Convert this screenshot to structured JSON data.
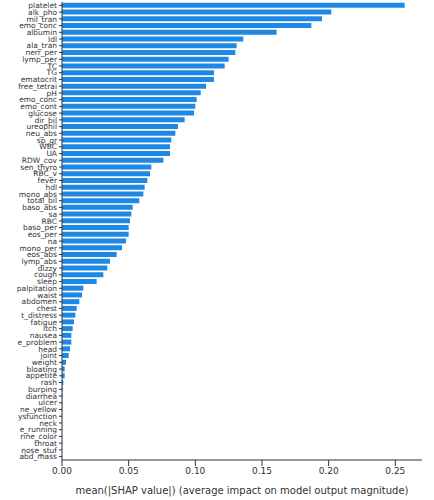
{
  "chart_data": {
    "type": "bar",
    "orientation": "horizontal",
    "xlabel": "mean(|SHAP value|) (average impact on model output magnitude)",
    "color": "#1e88e5",
    "grid": false,
    "xlim": [
      0,
      0.27
    ],
    "xticks": [
      {
        "value": 0,
        "label": "0.00"
      },
      {
        "value": 0.05,
        "label": "0.05"
      },
      {
        "value": 0.1,
        "label": "0.10"
      },
      {
        "value": 0.15,
        "label": "0.15"
      },
      {
        "value": 0.2,
        "label": "0.20"
      },
      {
        "value": 0.25,
        "label": "0.25"
      }
    ],
    "categories": [
      "platelet",
      "alk_pho",
      "mil_tran",
      "emo_conc",
      "albumin",
      "ldl",
      "ala_tran",
      "nerr_per",
      "lymp_per",
      "TC",
      "TG",
      "ematocrit",
      "free_tetrai",
      "pH",
      "emo_conc",
      "emo_cont",
      "glucose",
      "dir_bil",
      "ureophil",
      "neu_abs",
      "sp_gr",
      "WBC",
      "UA",
      "RDW_cov",
      "sen_thyro",
      "RBC_v",
      "fever",
      "hdl",
      "mono_abs",
      "total_bil",
      "baso_abs",
      "sa",
      "RBC",
      "baso_per",
      "eos_per",
      "na",
      "mono_per",
      "eos_abs",
      "lymp_abs",
      "dizzy",
      "cough",
      "sleep",
      "palpitation",
      "waist",
      "abdomen",
      "chest",
      "t_distress",
      "fatigue",
      "itch",
      "nausea",
      "e_problem",
      "head",
      "joint",
      "weight",
      "bloating",
      "appetite",
      "rash",
      "burping",
      "diarrhea",
      "ulcer",
      "ne_yellow",
      "ysfunction",
      "neck",
      "e_running",
      "rine_color",
      "throat",
      "nose_stuf",
      "abd_mass"
    ],
    "values": [
      0.257,
      0.202,
      0.195,
      0.187,
      0.161,
      0.136,
      0.131,
      0.13,
      0.125,
      0.122,
      0.114,
      0.114,
      0.108,
      0.104,
      0.101,
      0.1,
      0.099,
      0.092,
      0.087,
      0.085,
      0.082,
      0.081,
      0.081,
      0.076,
      0.067,
      0.066,
      0.064,
      0.062,
      0.061,
      0.058,
      0.053,
      0.052,
      0.051,
      0.05,
      0.05,
      0.048,
      0.045,
      0.041,
      0.036,
      0.034,
      0.031,
      0.026,
      0.016,
      0.015,
      0.013,
      0.011,
      0.01,
      0.009,
      0.008,
      0.007,
      0.007,
      0.006,
      0.005,
      0.003,
      0.002,
      0.002,
      0.001,
      0.0005,
      0.0004,
      0.0003,
      0.0002,
      0.0002,
      0.0001,
      0.0001,
      0.0001,
      0.0001,
      0,
      0
    ]
  }
}
